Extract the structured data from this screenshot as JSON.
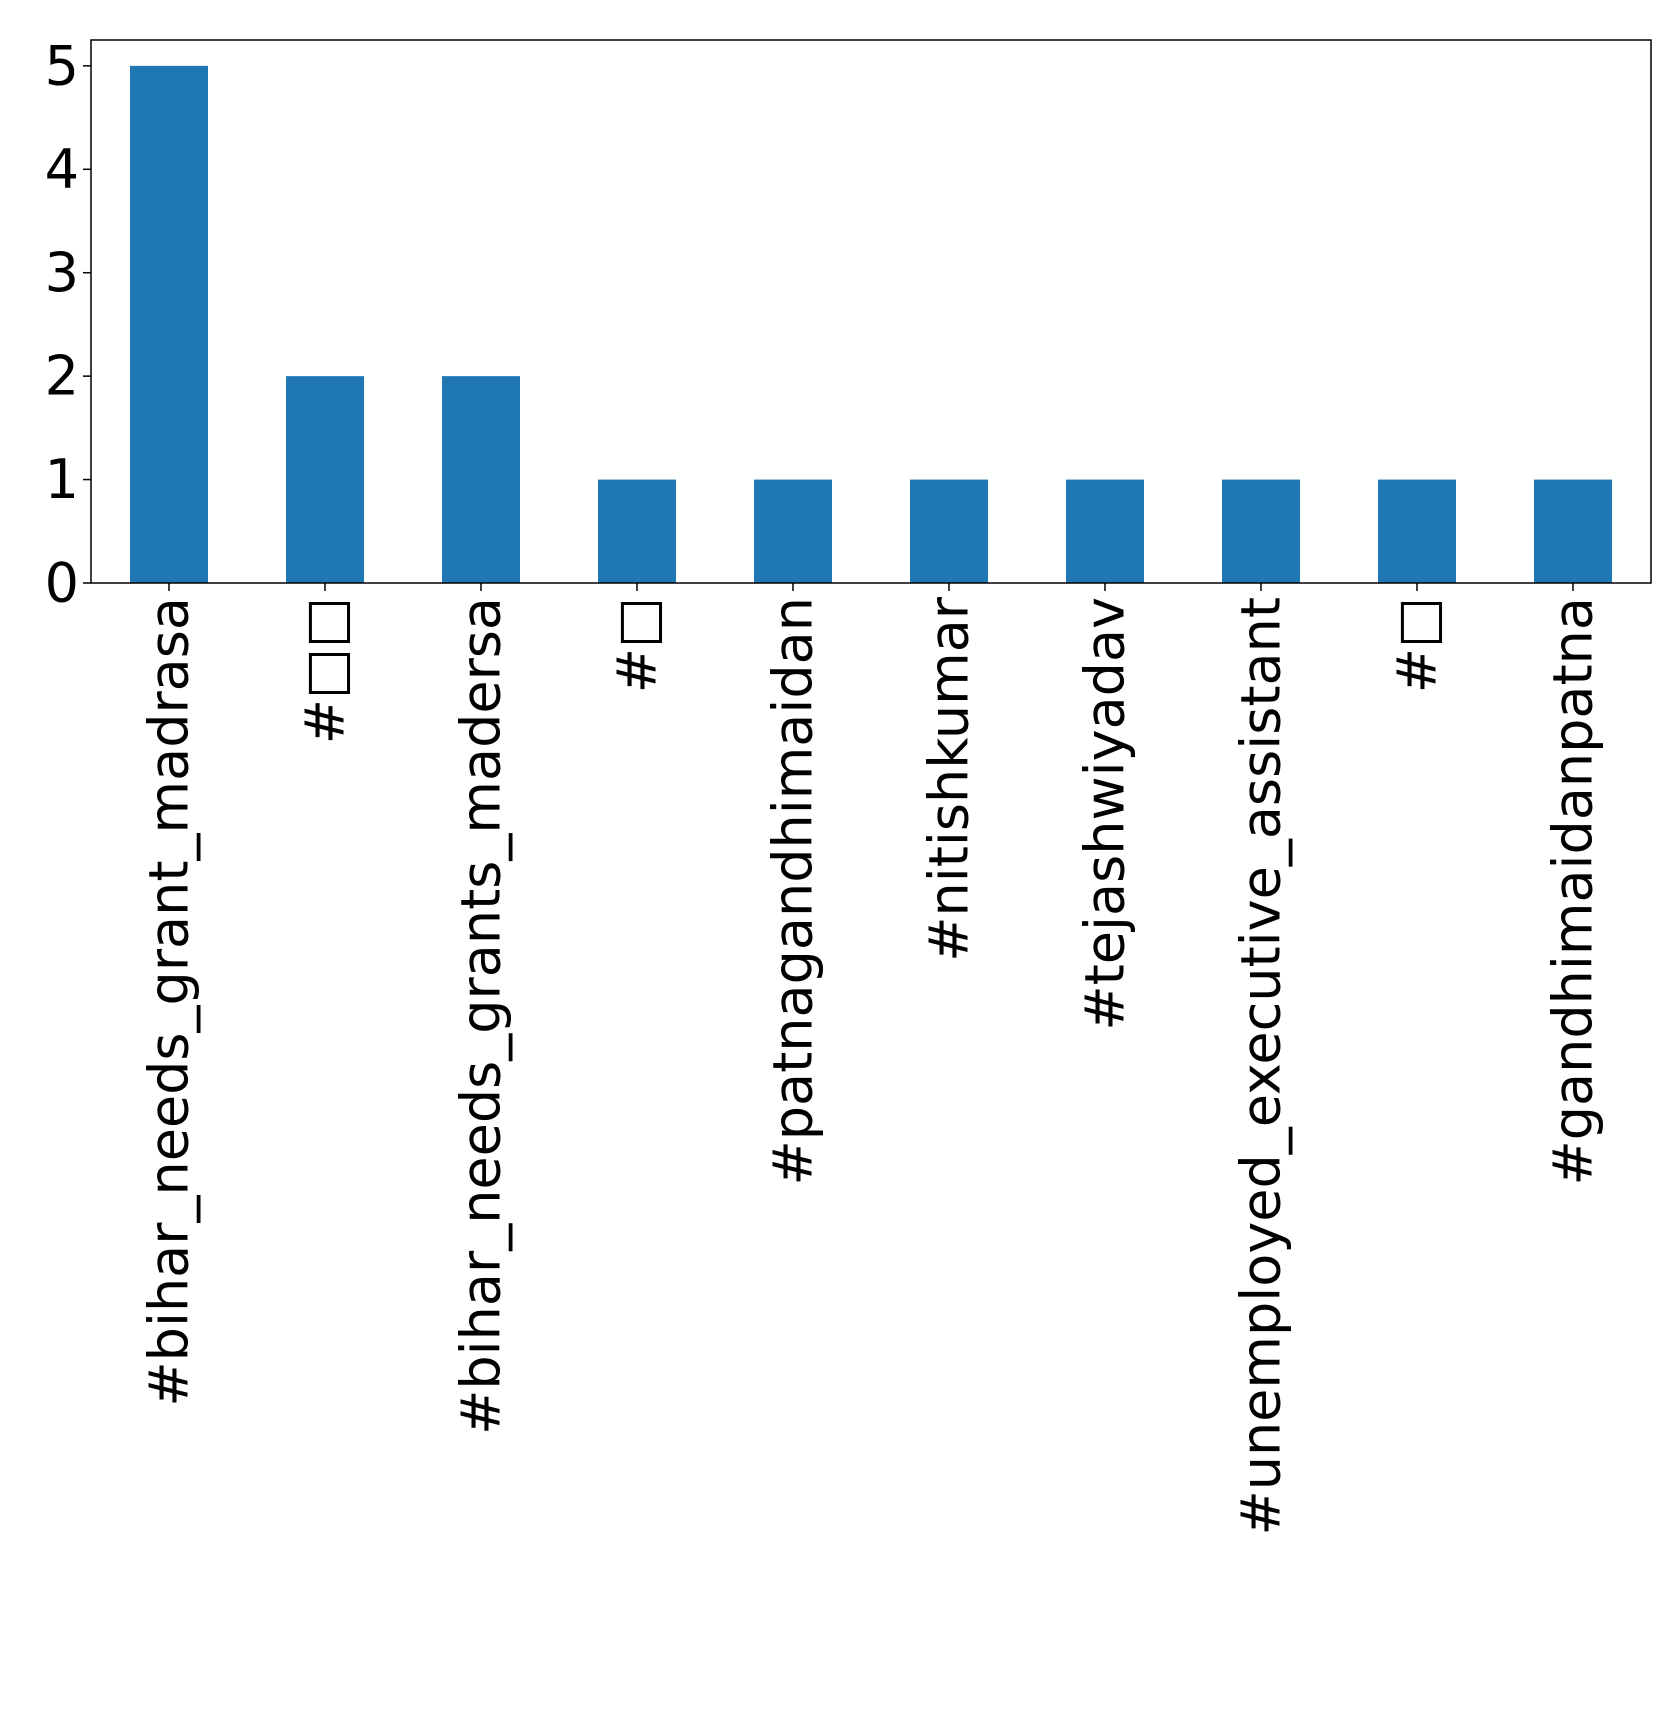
{
  "chart_data": {
    "type": "bar",
    "title": "",
    "xlabel": "",
    "ylabel": "",
    "categories": [
      "#bihar_needs_grant_madrasa",
      "#□□",
      "#bihar_needs_grants_madersa",
      "#□",
      "#patnagandhimaidan",
      "#nitishkumar",
      "#tejashwiyadav",
      "#unemployed_executive_assistant",
      "#□",
      "#gandhimaidanpatna"
    ],
    "values": [
      5,
      2,
      2,
      1,
      1,
      1,
      1,
      1,
      1,
      1
    ],
    "ylim": [
      0,
      5.25
    ],
    "yticks": [
      0,
      1,
      2,
      3,
      4,
      5
    ],
    "grid": false,
    "legend": "none",
    "bar_color": "#1f77b4"
  }
}
